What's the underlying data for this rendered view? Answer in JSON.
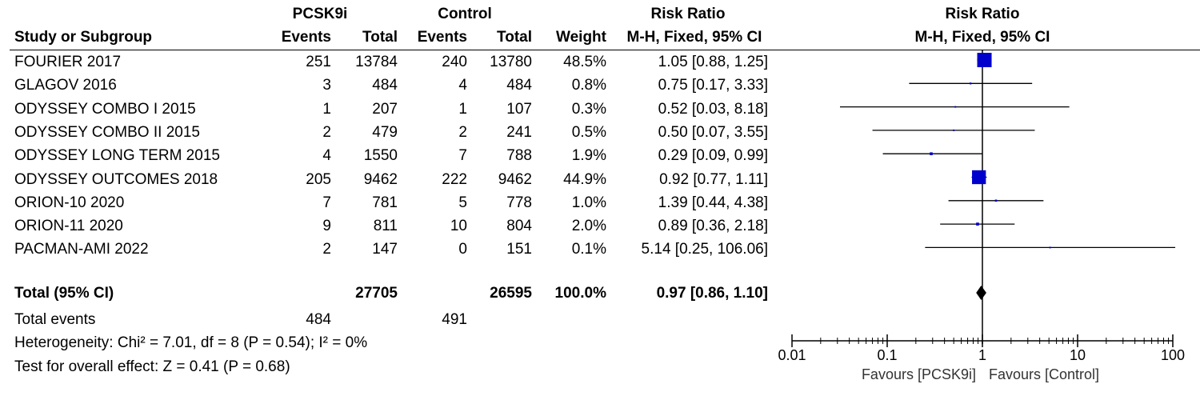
{
  "header": {
    "group1": "PCSK9i",
    "group2": "Control",
    "study_col": "Study or Subgroup",
    "events": "Events",
    "total": "Total",
    "weight": "Weight",
    "rr_title": "Risk Ratio",
    "rr_method": "M-H, Fixed, 95% CI"
  },
  "studies": [
    {
      "name": "FOURIER 2017",
      "e1": "251",
      "n1": "13784",
      "e2": "240",
      "n2": "13780",
      "weight": "48.5%",
      "ci": "1.05 [0.88, 1.25]"
    },
    {
      "name": "GLAGOV 2016",
      "e1": "3",
      "n1": "484",
      "e2": "4",
      "n2": "484",
      "weight": "0.8%",
      "ci": "0.75 [0.17, 3.33]"
    },
    {
      "name": "ODYSSEY COMBO I 2015",
      "e1": "1",
      "n1": "207",
      "e2": "1",
      "n2": "107",
      "weight": "0.3%",
      "ci": "0.52 [0.03, 8.18]"
    },
    {
      "name": "ODYSSEY COMBO II 2015",
      "e1": "2",
      "n1": "479",
      "e2": "2",
      "n2": "241",
      "weight": "0.5%",
      "ci": "0.50 [0.07, 3.55]"
    },
    {
      "name": "ODYSSEY LONG TERM 2015",
      "e1": "4",
      "n1": "1550",
      "e2": "7",
      "n2": "788",
      "weight": "1.9%",
      "ci": "0.29 [0.09, 0.99]"
    },
    {
      "name": "ODYSSEY OUTCOMES 2018",
      "e1": "205",
      "n1": "9462",
      "e2": "222",
      "n2": "9462",
      "weight": "44.9%",
      "ci": "0.92 [0.77, 1.11]"
    },
    {
      "name": "ORION-10 2020",
      "e1": "7",
      "n1": "781",
      "e2": "5",
      "n2": "778",
      "weight": "1.0%",
      "ci": "1.39 [0.44, 4.38]"
    },
    {
      "name": "ORION-11 2020",
      "e1": "9",
      "n1": "811",
      "e2": "10",
      "n2": "804",
      "weight": "2.0%",
      "ci": "0.89 [0.36, 2.18]"
    },
    {
      "name": "PACMAN-AMI 2022",
      "e1": "2",
      "n1": "147",
      "e2": "0",
      "n2": "151",
      "weight": "0.1%",
      "ci": "5.14 [0.25, 106.06]"
    }
  ],
  "total_row": {
    "label": "Total (95% CI)",
    "n1": "27705",
    "n2": "26595",
    "weight": "100.0%",
    "ci": "0.97 [0.86, 1.10]"
  },
  "total_events": {
    "label": "Total events",
    "e1": "484",
    "e2": "491"
  },
  "heterogeneity": "Heterogeneity: Chi² = 7.01, df = 8 (P = 0.54); I² = 0%",
  "overall_effect": "Test for overall effect: Z = 0.41 (P = 0.68)",
  "colors": {
    "marker": "#0000cc",
    "line": "#000000"
  },
  "chart_data": {
    "type": "forest",
    "title": "Risk Ratio",
    "subtitle": "M-H, Fixed, 95% CI",
    "scale": "log",
    "xlim": [
      0.01,
      100
    ],
    "ticks": [
      "0.01",
      "0.1",
      "1",
      "10",
      "100"
    ],
    "tick_values": [
      0.01,
      0.1,
      1,
      10,
      100
    ],
    "favours_left": "Favours [PCSK9i]",
    "favours_right": "Favours [Control]",
    "studies": [
      {
        "name": "FOURIER 2017",
        "rr": 1.05,
        "lo": 0.88,
        "hi": 1.25,
        "weight": 48.5
      },
      {
        "name": "GLAGOV 2016",
        "rr": 0.75,
        "lo": 0.17,
        "hi": 3.33,
        "weight": 0.8
      },
      {
        "name": "ODYSSEY COMBO I 2015",
        "rr": 0.52,
        "lo": 0.03,
        "hi": 8.18,
        "weight": 0.3
      },
      {
        "name": "ODYSSEY COMBO II 2015",
        "rr": 0.5,
        "lo": 0.07,
        "hi": 3.55,
        "weight": 0.5
      },
      {
        "name": "ODYSSEY LONG TERM 2015",
        "rr": 0.29,
        "lo": 0.09,
        "hi": 0.99,
        "weight": 1.9
      },
      {
        "name": "ODYSSEY OUTCOMES 2018",
        "rr": 0.92,
        "lo": 0.77,
        "hi": 1.11,
        "weight": 44.9
      },
      {
        "name": "ORION-10 2020",
        "rr": 1.39,
        "lo": 0.44,
        "hi": 4.38,
        "weight": 1.0
      },
      {
        "name": "ORION-11 2020",
        "rr": 0.89,
        "lo": 0.36,
        "hi": 2.18,
        "weight": 2.0
      },
      {
        "name": "PACMAN-AMI 2022",
        "rr": 5.14,
        "lo": 0.25,
        "hi": 106.06,
        "weight": 0.1
      }
    ],
    "pooled": {
      "rr": 0.97,
      "lo": 0.86,
      "hi": 1.1
    }
  }
}
